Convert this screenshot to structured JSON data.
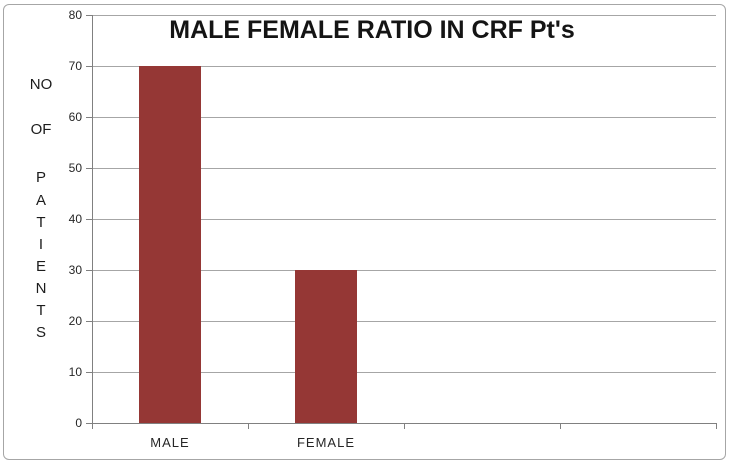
{
  "chart_data": {
    "type": "bar",
    "title": "MALE FEMALE RATIO IN CRF Pt's",
    "categories": [
      "MALE",
      "FEMALE"
    ],
    "values": [
      70,
      30
    ],
    "series": [
      {
        "name": "NO OF PATIENTS",
        "values": [
          70,
          30
        ]
      }
    ],
    "xlabel": "",
    "ylabel": "NO OF PATIENTS",
    "ylabel_lines": [
      "NO",
      "OF",
      "P",
      "A",
      "T",
      "I",
      "E",
      "N",
      "T",
      "S"
    ],
    "ylim": [
      0,
      80
    ],
    "ytick_step": 10,
    "yticks": [
      0,
      10,
      20,
      30,
      40,
      50,
      60,
      70,
      80
    ],
    "num_category_slots": 4,
    "grid": true,
    "legend": false,
    "colors": {
      "bar": "#953735",
      "gridline": "#A6A6A6",
      "axis": "#808080",
      "text": "#262626",
      "border": "#A6A6A6"
    }
  }
}
